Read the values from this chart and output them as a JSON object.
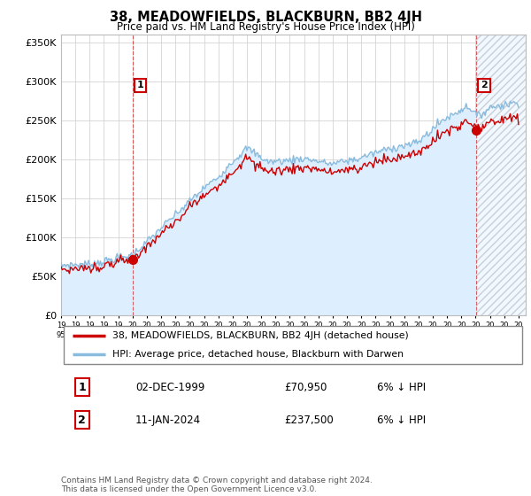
{
  "title": "38, MEADOWFIELDS, BLACKBURN, BB2 4JH",
  "subtitle": "Price paid vs. HM Land Registry's House Price Index (HPI)",
  "legend_label_red": "38, MEADOWFIELDS, BLACKBURN, BB2 4JH (detached house)",
  "legend_label_blue": "HPI: Average price, detached house, Blackburn with Darwen",
  "annotation1_date": "02-DEC-1999",
  "annotation1_price": "£70,950",
  "annotation1_hpi": "6% ↓ HPI",
  "annotation2_date": "11-JAN-2024",
  "annotation2_price": "£237,500",
  "annotation2_hpi": "6% ↓ HPI",
  "footer": "Contains HM Land Registry data © Crown copyright and database right 2024.\nThis data is licensed under the Open Government Licence v3.0.",
  "sale1_year": 2000.0,
  "sale1_price": 70950,
  "sale2_year": 2024.05,
  "sale2_price": 237500,
  "ylim": [
    0,
    360000
  ],
  "xlim_start": 1995,
  "xlim_end": 2027.5,
  "background_color": "#ffffff",
  "grid_color": "#cccccc",
  "red_color": "#cc0000",
  "blue_color": "#88bbdd",
  "blue_fill_color": "#ddeeff",
  "annotation_box_color": "#cc0000",
  "hatch_color": "#cccccc"
}
